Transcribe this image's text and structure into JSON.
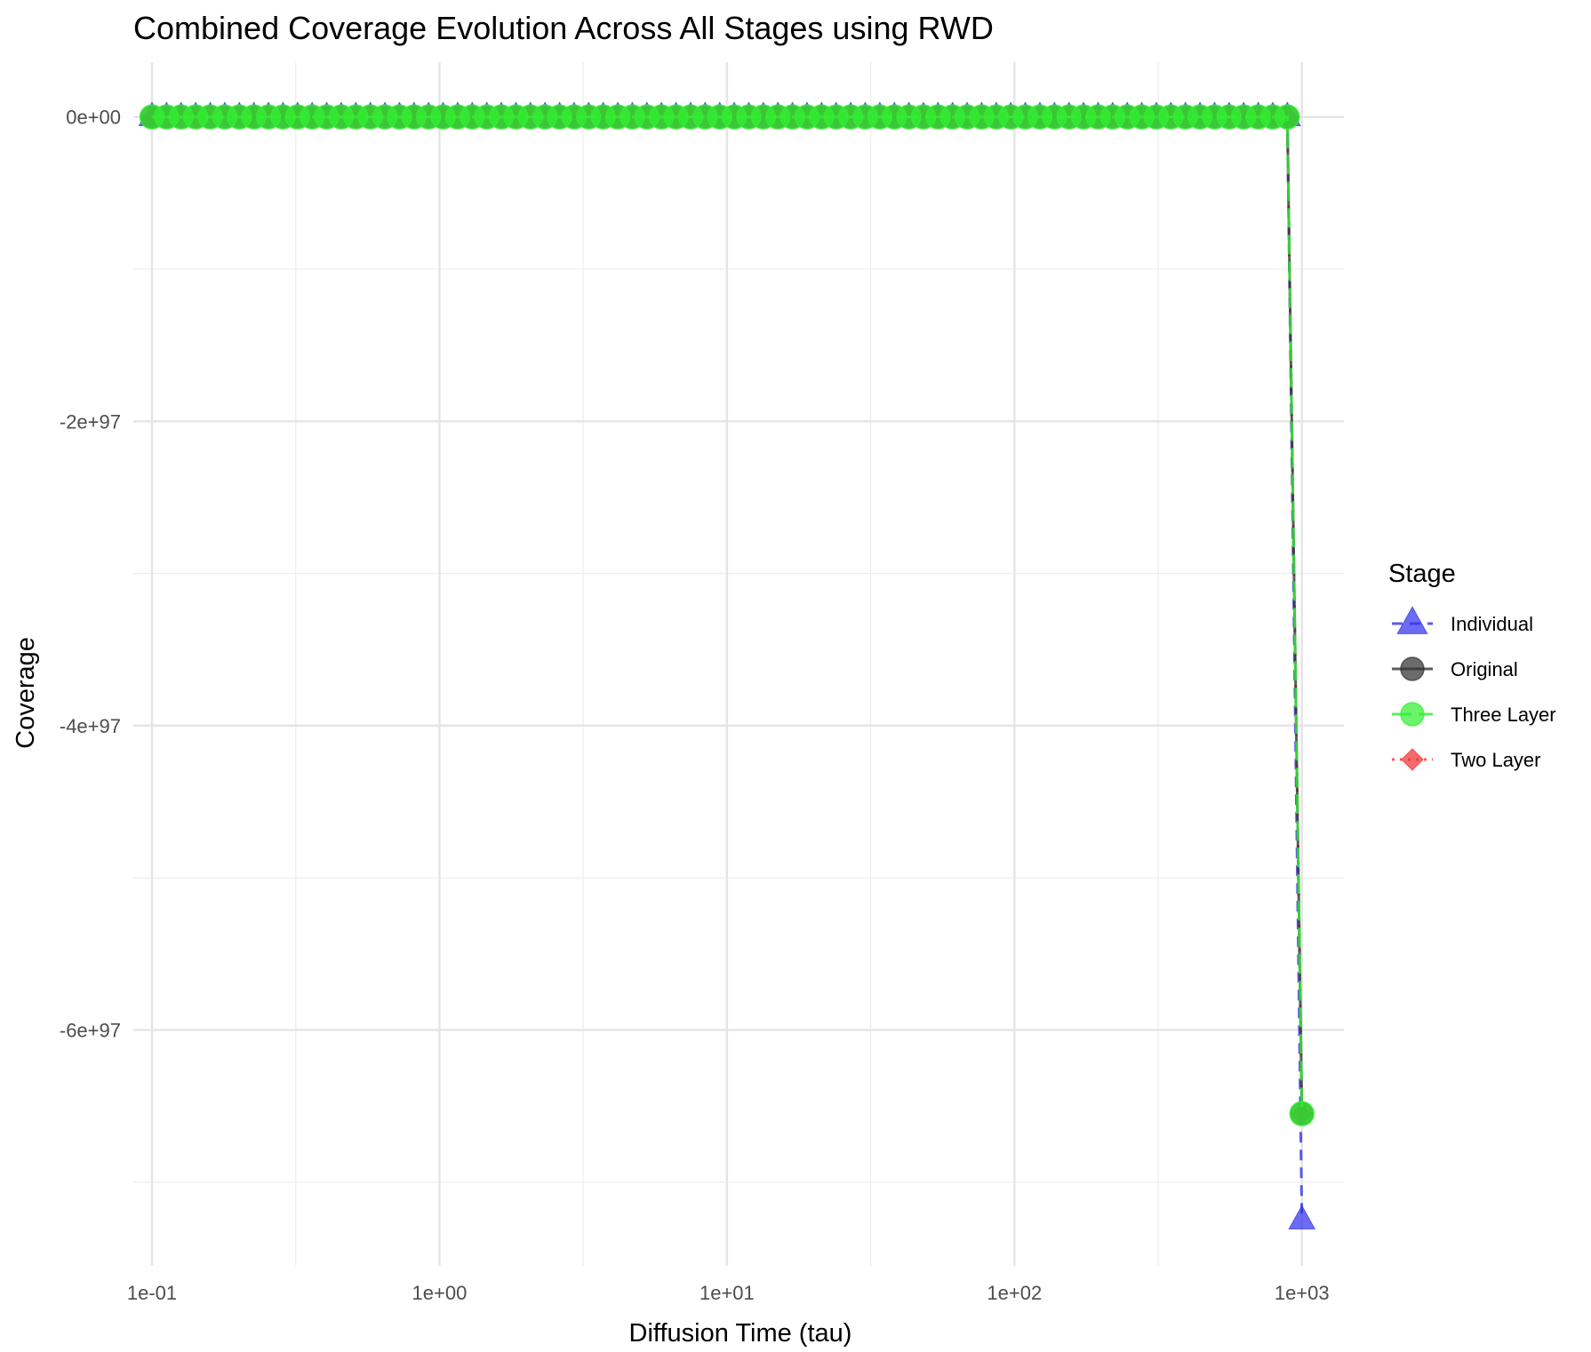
{
  "chart_data": {
    "type": "line",
    "title": "Combined Coverage Evolution Across All Stages using RWD",
    "xlabel": "Diffusion Time (tau)",
    "ylabel": "Coverage",
    "x_scale": "log10",
    "xlim": [
      0.0861,
      1400
    ],
    "ylim": [
      -7.55e+97,
      3.6e+96
    ],
    "x_ticks": [
      {
        "value": 0.1,
        "label": "1e-01"
      },
      {
        "value": 1,
        "label": "1e+00"
      },
      {
        "value": 10,
        "label": "1e+01"
      },
      {
        "value": 100,
        "label": "1e+02"
      },
      {
        "value": 1000,
        "label": "1e+03"
      }
    ],
    "y_ticks": [
      {
        "value": 0,
        "label": "0e+00"
      },
      {
        "value": -2e+97,
        "label": "-2e+97"
      },
      {
        "value": -4e+97,
        "label": "-4e+97"
      },
      {
        "value": -6e+97,
        "label": "-6e+97"
      }
    ],
    "grid": true,
    "legend": {
      "title": "Stage",
      "placement": "right",
      "entries": [
        "Individual",
        "Original",
        "Three Layer",
        "Two Layer"
      ]
    },
    "x_sampling": {
      "start": 0.1,
      "end": 1000,
      "count": 80
    },
    "series": [
      {
        "name": "Individual",
        "color": "#3333ee",
        "marker": "triangle",
        "linestyle": "dashed",
        "plateau": 0,
        "final_value": -7.25e+97,
        "draw_order": 1
      },
      {
        "name": "Two Layer",
        "color": "#ee3333",
        "marker": "diamond",
        "linestyle": "dotted",
        "plateau": 0,
        "final_value": -6.55e+97,
        "draw_order": 2
      },
      {
        "name": "Original",
        "color": "#333333",
        "marker": "circle",
        "linestyle": "solid",
        "plateau": 0,
        "final_value": -6.55e+97,
        "draw_order": 3
      },
      {
        "name": "Three Layer",
        "color": "#33ee33",
        "marker": "circle",
        "linestyle": "longdash",
        "plateau": 0,
        "final_value": -6.55e+97,
        "draw_order": 4
      }
    ]
  }
}
